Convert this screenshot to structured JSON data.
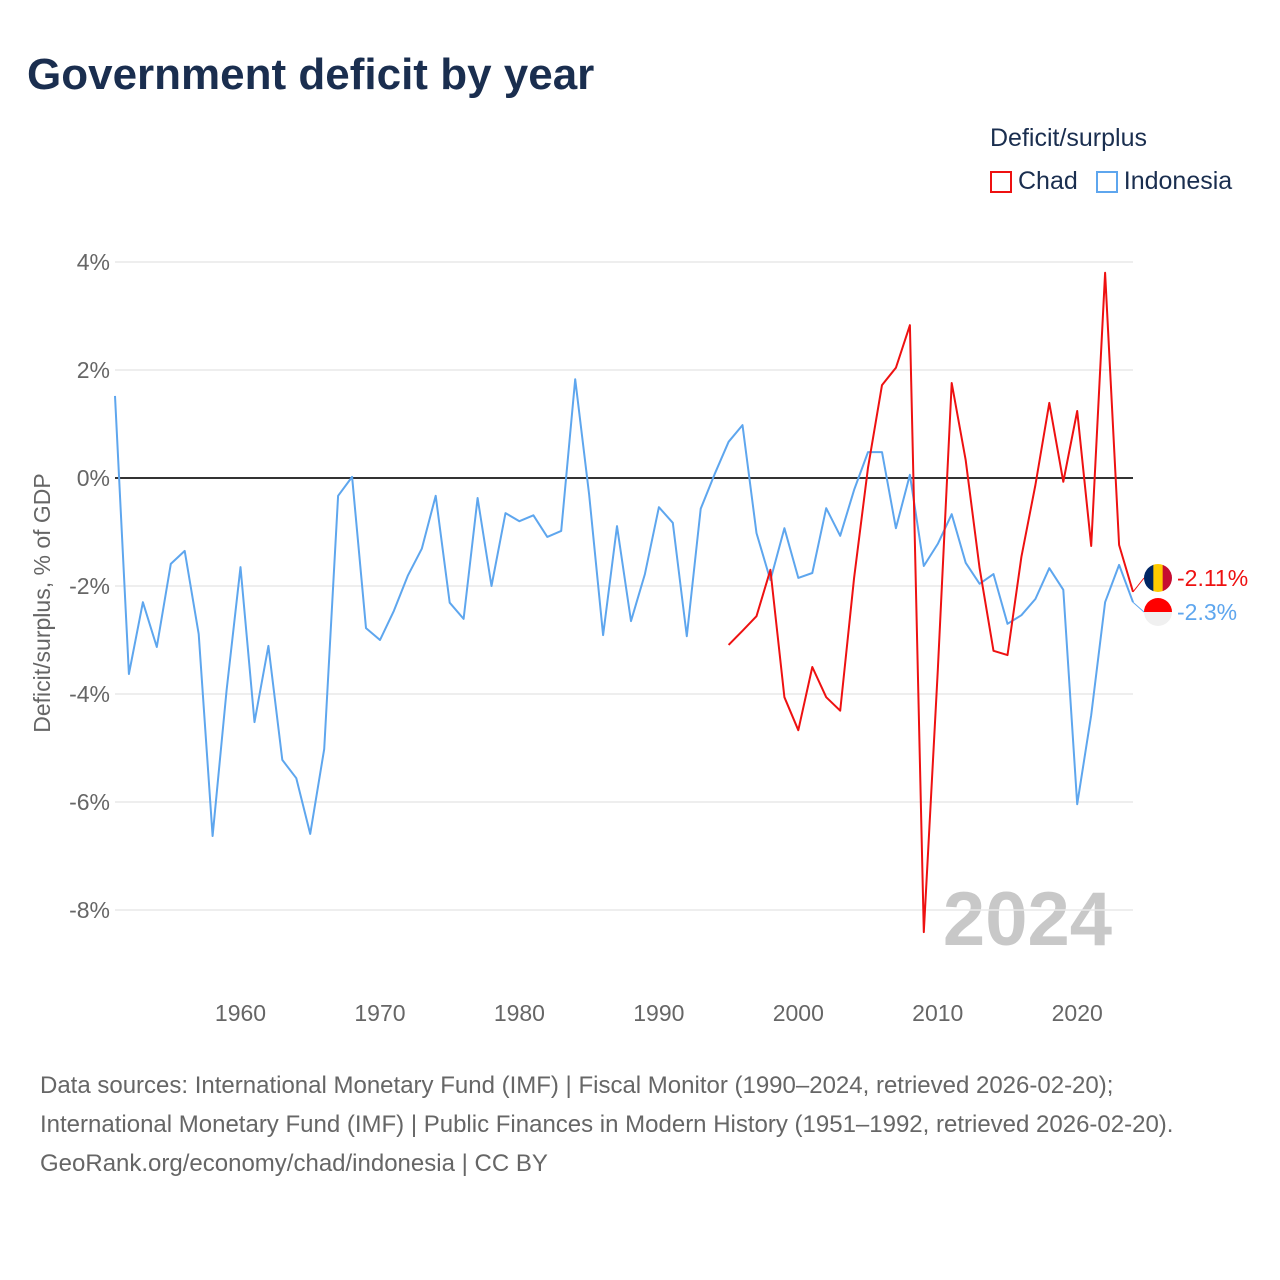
{
  "title": "Government deficit by year",
  "legend": {
    "title": "Deficit/surplus",
    "items": [
      {
        "name": "Chad",
        "color": "#ee1111"
      },
      {
        "name": "Indonesia",
        "color": "#5ea6ee"
      }
    ]
  },
  "footer": {
    "sources": "Data sources: International Monetary Fund (IMF) | Fiscal Monitor (1990–2024, retrieved 2026-02-20); International Monetary Fund (IMF) | Public Finances in Modern History (1951–1992, retrieved 2026-02-20).",
    "credit": "GeoRank.org/economy/chad/indonesia | CC BY"
  },
  "chart_data": {
    "type": "line",
    "title": "Government deficit by year",
    "ylabel": "Deficit/surplus, % of GDP",
    "xlabel": "",
    "xlim": [
      1951,
      2024
    ],
    "ylim": [
      -9,
      4.5
    ],
    "yticks": [
      4,
      2,
      0,
      -2,
      -4,
      -6,
      -8
    ],
    "ytick_labels": [
      "4%",
      "2%",
      "0%",
      "-2%",
      "-4%",
      "-6%",
      "-8%"
    ],
    "xticks": [
      1960,
      1970,
      1980,
      1990,
      2000,
      2010,
      2020
    ],
    "xtick_labels": [
      "1960",
      "1970",
      "1980",
      "1990",
      "2000",
      "2010",
      "2020"
    ],
    "watermark_year": "2024",
    "grid": true,
    "legend_position": "top-right",
    "series": [
      {
        "name": "Indonesia",
        "color": "#5ea6ee",
        "start": 1951,
        "end_label": "-2.3%",
        "values": [
          1.52,
          -3.63,
          -2.3,
          -3.13,
          -1.59,
          -1.35,
          -2.89,
          -6.63,
          -3.93,
          -1.65,
          -4.52,
          -3.11,
          -5.22,
          -5.56,
          -6.59,
          -5.02,
          -0.33,
          0.02,
          -2.78,
          -3.0,
          -2.46,
          -1.81,
          -1.31,
          -0.33,
          -2.31,
          -2.61,
          -0.37,
          -2.0,
          -0.65,
          -0.8,
          -0.69,
          -1.09,
          -0.98,
          1.83,
          -0.3,
          -2.91,
          -0.89,
          -2.65,
          -1.78,
          -0.54,
          -0.83,
          -2.93,
          -0.57,
          0.07,
          0.67,
          0.98,
          -1.02,
          -1.89,
          -0.93,
          -1.85,
          -1.76,
          -0.56,
          -1.07,
          -0.22,
          0.48,
          0.48,
          -0.93,
          0.06,
          -1.63,
          -1.22,
          -0.67,
          -1.57,
          -1.96,
          -1.78,
          -2.7,
          -2.54,
          -2.24,
          -1.67,
          -2.07,
          -6.04,
          -4.39,
          -2.3,
          -1.61,
          -2.3
        ]
      },
      {
        "name": "Chad",
        "color": "#ee1111",
        "start": 1995,
        "end_label": "-2.11%",
        "values": [
          -3.09,
          -2.83,
          -2.56,
          -1.7,
          -4.06,
          -4.67,
          -3.5,
          -4.06,
          -4.31,
          -1.85,
          0.19,
          1.72,
          2.04,
          2.83,
          -8.41,
          -3.56,
          1.76,
          0.33,
          -1.67,
          -3.2,
          -3.28,
          -1.46,
          -0.13,
          1.39,
          -0.07,
          1.24,
          -1.26,
          3.8,
          -1.24,
          -2.11
        ]
      }
    ]
  }
}
